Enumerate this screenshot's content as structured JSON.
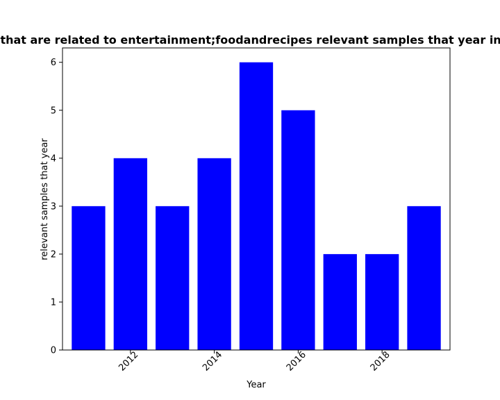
{
  "chart_data": {
    "type": "bar",
    "title": "Mobile apps that are related to entertainment;foodandrecipes relevant samples that year in privacy policy",
    "xlabel": "Year",
    "ylabel": "relevant samples that year",
    "x": [
      2011,
      2012,
      2013,
      2014,
      2015,
      2016,
      2017,
      2018,
      2019
    ],
    "values": [
      3,
      4,
      3,
      4,
      6,
      5,
      2,
      2,
      3
    ],
    "xlim": [
      2010.38,
      2019.62
    ],
    "ylim": [
      0,
      6.3
    ],
    "xticks": [
      2012,
      2014,
      2016,
      2018
    ],
    "yticks": [
      0,
      1,
      2,
      3,
      4,
      5,
      6
    ],
    "bar_color": "#0000ff",
    "grid": false,
    "legend": "none"
  }
}
